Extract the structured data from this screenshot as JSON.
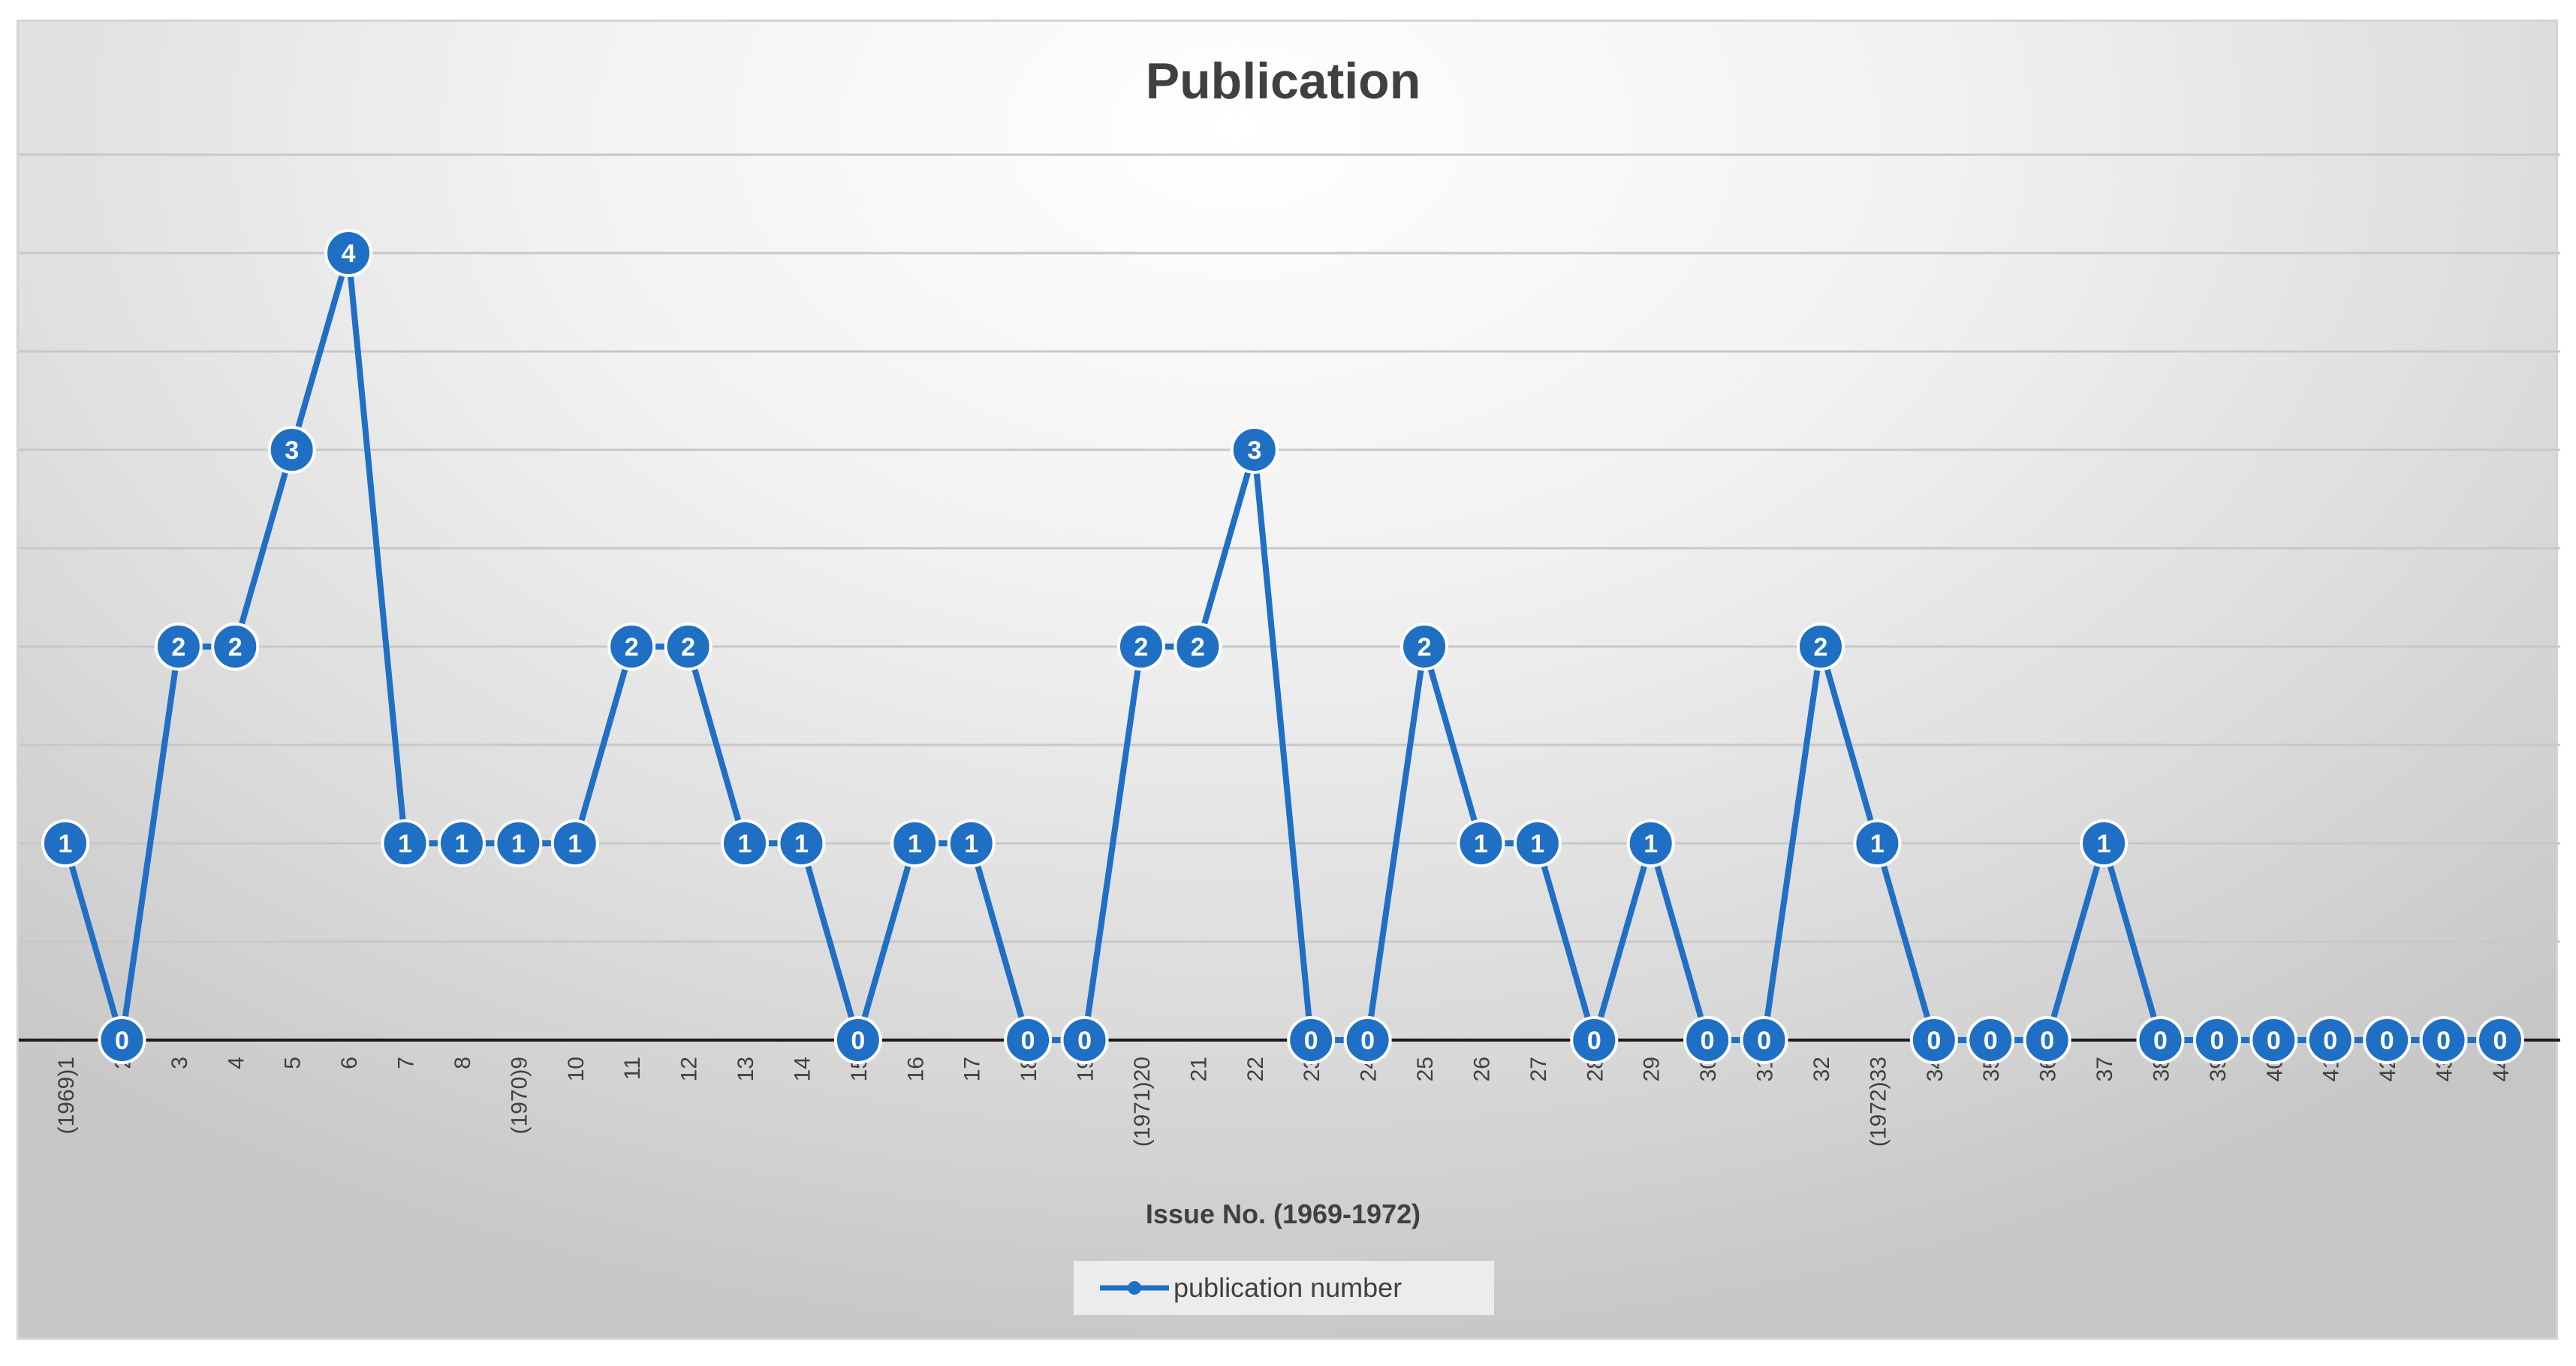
{
  "chart_data": {
    "type": "line",
    "title": "Publication",
    "xlabel": "Issue No. (1969-1972)",
    "ylabel": "",
    "categories": [
      "(1969)1",
      "2",
      "3",
      "4",
      "5",
      "6",
      "7",
      "8",
      "(1970)9",
      "10",
      "11",
      "12",
      "13",
      "14",
      "15",
      "16",
      "17",
      "18",
      "19",
      "(1971)20",
      "21",
      "22",
      "23",
      "24",
      "25",
      "26",
      "27",
      "28",
      "29",
      "30",
      "31",
      "32",
      "(1972)33",
      "34",
      "35",
      "36",
      "37",
      "38",
      "39",
      "40",
      "41",
      "42",
      "43",
      "44"
    ],
    "series": [
      {
        "name": "publication number",
        "values": [
          1,
          0,
          2,
          2,
          3,
          4,
          1,
          1,
          1,
          1,
          2,
          2,
          1,
          1,
          0,
          1,
          1,
          0,
          0,
          2,
          2,
          3,
          0,
          0,
          2,
          1,
          1,
          0,
          1,
          0,
          0,
          2,
          1,
          0,
          0,
          0,
          1,
          0,
          0,
          0,
          0,
          0,
          0,
          0
        ]
      }
    ],
    "ylim": [
      0,
      4.5
    ],
    "grid": true,
    "legend": "bottom",
    "colors": {
      "series": "#1f6fc5",
      "grid": "#c8c8c8",
      "axis": "#1a1a1a"
    }
  }
}
